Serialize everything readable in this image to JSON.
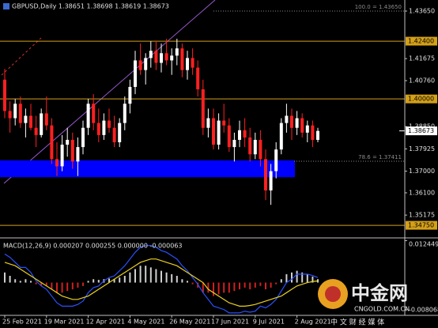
{
  "chart_data": [
    {
      "type": "candlestick",
      "title": "GBPUSD,Daily  1.38651 1.38698 1.38619 1.38673",
      "categories": [
        "25 Feb 2021",
        null,
        null,
        null,
        null,
        null,
        null,
        null,
        "19 Mar 2021",
        null,
        null,
        null,
        null,
        null,
        null,
        null,
        "12 Apr 2021",
        null,
        null,
        null,
        null,
        null,
        null,
        null,
        "4 May 2021",
        null,
        null,
        null,
        null,
        null,
        null,
        null,
        "26 May 2021",
        null,
        null,
        null,
        null,
        null,
        null,
        null,
        "17 Jun 2021",
        null,
        null,
        null,
        null,
        null,
        null,
        null,
        "9 Jul 2021",
        null,
        null,
        null,
        null,
        null,
        null,
        null,
        "2 Aug 2021",
        null,
        null,
        null,
        null
      ],
      "open": [
        1.408,
        1.395,
        1.392,
        1.398,
        1.39,
        1.393,
        1.388,
        1.385,
        1.394,
        1.389,
        1.375,
        1.372,
        1.381,
        1.383,
        1.374,
        1.38,
        1.388,
        1.398,
        1.39,
        1.385,
        1.391,
        1.388,
        1.382,
        1.39,
        1.398,
        1.405,
        1.416,
        1.412,
        1.417,
        1.42,
        1.415,
        1.419,
        1.416,
        1.418,
        1.421,
        1.412,
        1.417,
        1.413,
        1.404,
        1.388,
        1.392,
        1.381,
        1.391,
        1.389,
        1.38,
        1.383,
        1.387,
        1.384,
        1.377,
        1.383,
        1.375,
        1.362,
        1.37,
        1.379,
        1.39,
        1.393,
        1.388,
        1.392,
        1.386,
        1.389,
        1.383
      ],
      "high": [
        1.4125,
        1.399,
        1.4,
        1.401,
        1.396,
        1.398,
        1.393,
        1.396,
        1.401,
        1.392,
        1.382,
        1.385,
        1.388,
        1.386,
        1.384,
        1.391,
        1.4,
        1.402,
        1.396,
        1.394,
        1.396,
        1.393,
        1.392,
        1.401,
        1.408,
        1.42,
        1.423,
        1.419,
        1.424,
        1.424,
        1.423,
        1.425,
        1.421,
        1.425,
        1.423,
        1.42,
        1.421,
        1.416,
        1.408,
        1.396,
        1.396,
        1.394,
        1.398,
        1.392,
        1.386,
        1.391,
        1.392,
        1.388,
        1.386,
        1.387,
        1.379,
        1.373,
        1.382,
        1.392,
        1.398,
        1.396,
        1.395,
        1.394,
        1.391,
        1.391,
        1.388
      ],
      "low": [
        1.392,
        1.386,
        1.389,
        1.388,
        1.384,
        1.387,
        1.38,
        1.384,
        1.387,
        1.373,
        1.368,
        1.37,
        1.376,
        1.371,
        1.368,
        1.377,
        1.385,
        1.387,
        1.382,
        1.383,
        1.386,
        1.38,
        1.38,
        1.387,
        1.394,
        1.402,
        1.41,
        1.406,
        1.413,
        1.412,
        1.411,
        1.414,
        1.41,
        1.414,
        1.409,
        1.408,
        1.41,
        1.401,
        1.385,
        1.384,
        1.379,
        1.379,
        1.386,
        1.378,
        1.374,
        1.38,
        1.38,
        1.374,
        1.375,
        1.372,
        1.358,
        1.356,
        1.367,
        1.377,
        1.386,
        1.383,
        1.385,
        1.384,
        1.382,
        1.38,
        1.382
      ],
      "close": [
        1.395,
        1.392,
        1.398,
        1.39,
        1.393,
        1.388,
        1.385,
        1.394,
        1.389,
        1.375,
        1.372,
        1.381,
        1.383,
        1.374,
        1.38,
        1.388,
        1.398,
        1.39,
        1.385,
        1.391,
        1.388,
        1.382,
        1.39,
        1.398,
        1.405,
        1.416,
        1.412,
        1.417,
        1.42,
        1.415,
        1.419,
        1.416,
        1.418,
        1.421,
        1.412,
        1.417,
        1.413,
        1.404,
        1.388,
        1.392,
        1.381,
        1.391,
        1.389,
        1.38,
        1.383,
        1.387,
        1.384,
        1.377,
        1.383,
        1.375,
        1.362,
        1.37,
        1.379,
        1.39,
        1.393,
        1.388,
        1.392,
        1.386,
        1.389,
        1.383,
        1.3867
      ],
      "up_color": "#ffffff",
      "down_color": "#ff2020",
      "ylim": [
        1.3426,
        1.4411
      ],
      "yticks": [
        {
          "value": 1.4365,
          "label": "1.43650"
        },
        1.41675,
        {
          "value": 1.4076,
          "label": "1.40760"
        },
        {
          "value": 1.3885,
          "label": "1.38850"
        },
        1.37925,
        {
          "value": 1.37,
          "label": "1.37000"
        },
        {
          "value": 1.361,
          "label": "1.36100"
        },
        1.35175
      ],
      "levels": [
        {
          "value": 1.424,
          "label": "1.42400"
        },
        {
          "value": 1.4,
          "label": "1.40000"
        },
        {
          "value": 1.3475,
          "label": "1.34750"
        }
      ],
      "level_color": "#d4a017",
      "fibs": [
        {
          "value": 1.4365,
          "label": "100.0 = 1.43650"
        },
        {
          "value": 1.37411,
          "label": "78.6 = 1.37411"
        }
      ],
      "fib_color": "#8a8a8a",
      "last_price": {
        "value": 1.38673,
        "label": "1.38673"
      },
      "zone": [
        1.3745,
        1.3675
      ],
      "zone_color": "#0000ff"
    },
    {
      "type": "macd",
      "title": "MACD(12,26,9) 0.000207 0.000255 0.000000 -0.000063",
      "ylim": [
        -0.0095,
        0.0128
      ],
      "yticks": [
        0.012449,
        -0.008068
      ],
      "histogram": [
        0.003,
        0.002,
        0.001,
        0.0005,
        0.001,
        0.0005,
        -0.0005,
        -0.001,
        -0.001,
        -0.002,
        -0.003,
        -0.003,
        -0.0025,
        -0.002,
        -0.0015,
        -0.001,
        0.0005,
        0.001,
        0.0008,
        0.001,
        0.0012,
        0.001,
        0.0015,
        0.002,
        0.003,
        0.004,
        0.005,
        0.005,
        0.0045,
        0.004,
        0.0035,
        0.003,
        0.0025,
        0.002,
        0.001,
        0.0005,
        -0.0005,
        -0.0015,
        -0.003,
        -0.003,
        -0.004,
        -0.0035,
        -0.003,
        -0.003,
        -0.0025,
        -0.002,
        -0.0015,
        -0.002,
        -0.0015,
        -0.001,
        -0.002,
        -0.0015,
        -0.0005,
        0.001,
        0.0025,
        0.003,
        0.0035,
        0.003,
        0.0025,
        0.0018,
        0.001
      ],
      "macd": [
        0.0085,
        0.0075,
        0.006,
        0.0045,
        0.0045,
        0.003,
        0.0005,
        -0.001,
        -0.002,
        -0.004,
        -0.006,
        -0.007,
        -0.007,
        -0.007,
        -0.0065,
        -0.0055,
        -0.003,
        -0.0015,
        -0.001,
        0.0005,
        0.0015,
        0.002,
        0.0035,
        0.005,
        0.007,
        0.009,
        0.0105,
        0.011,
        0.011,
        0.0105,
        0.0095,
        0.009,
        0.008,
        0.007,
        0.005,
        0.0035,
        0.0015,
        -0.0005,
        -0.003,
        -0.005,
        -0.007,
        -0.0075,
        -0.008,
        -0.009,
        -0.009,
        -0.009,
        -0.0085,
        -0.0088,
        -0.0085,
        -0.007,
        -0.0075,
        -0.0065,
        -0.005,
        -0.0025,
        0,
        0.001,
        0.0025,
        0.0025,
        0.0025,
        0.0021,
        0.0015
      ],
      "signal": [
        0.006,
        0.0055,
        0.005,
        0.004,
        0.003,
        0.002,
        0.001,
        0,
        -0.001,
        -0.002,
        -0.003,
        -0.004,
        -0.0045,
        -0.005,
        -0.005,
        -0.0045,
        -0.004,
        -0.003,
        -0.002,
        -0.001,
        0,
        0.001,
        0.002,
        0.003,
        0.004,
        0.005,
        0.006,
        0.0065,
        0.007,
        0.007,
        0.0065,
        0.006,
        0.0055,
        0.005,
        0.004,
        0.003,
        0.002,
        0.001,
        0,
        -0.002,
        -0.003,
        -0.004,
        -0.005,
        -0.006,
        -0.0065,
        -0.007,
        -0.007,
        -0.0068,
        -0.0065,
        -0.006,
        -0.0055,
        -0.005,
        -0.0045,
        -0.004,
        -0.003,
        -0.002,
        -0.001,
        -0.0005,
        0,
        0.0003,
        0.0005
      ],
      "hist_up_color": "#d0d0d0",
      "hist_down_color": "#d02020",
      "macd_color": "#2a50ff",
      "signal_color": "#e8d020"
    }
  ],
  "watermark": {
    "name": "中金网",
    "url": "CNGOLD.COM.CN",
    "tagline": "中 文 财 经 媒 体"
  }
}
